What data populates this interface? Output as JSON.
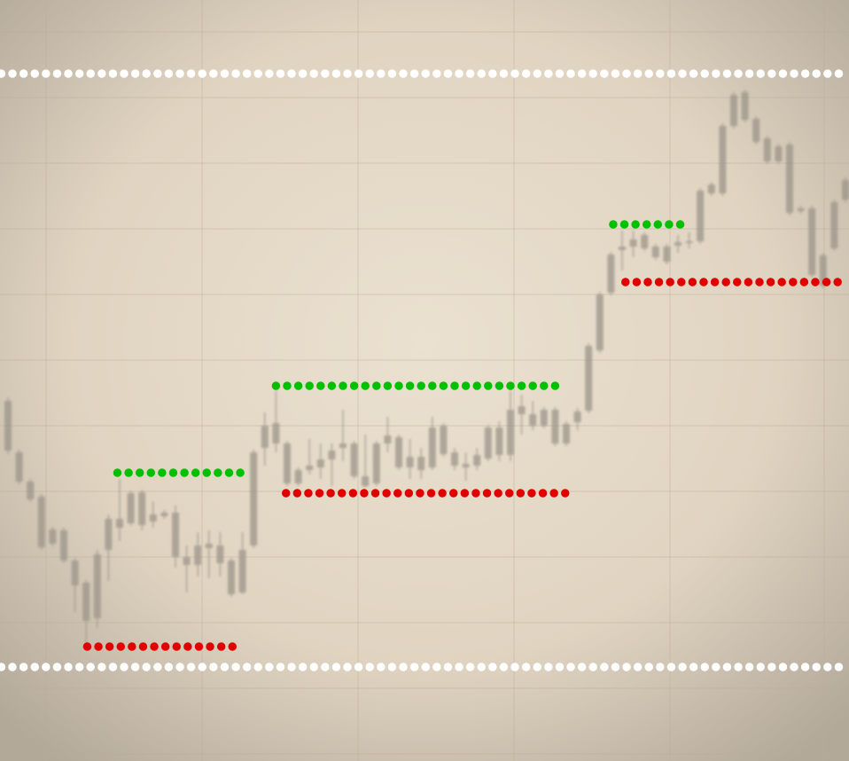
{
  "chart_data": {
    "type": "candlestick",
    "ylim": [
      0,
      858
    ],
    "open": [
      350,
      315,
      295,
      241,
      245,
      226,
      198,
      158,
      161,
      238,
      263,
      268,
      266,
      270,
      276,
      230,
      221,
      221,
      240,
      223,
      188,
      190,
      243,
      353,
      358,
      313,
      313,
      328,
      331,
      340,
      353,
      321,
      310,
      313,
      358,
      331,
      331,
      328,
      331,
      346,
      333,
      331,
      333,
      341,
      345,
      345,
      391,
      378,
      378,
      358,
      358,
      382,
      395,
      463,
      528,
      576,
      580,
      578,
      568,
      563,
      581,
      584,
      586,
      640,
      640,
      716,
      723,
      698,
      676,
      676,
      618,
      620,
      548,
      536,
      578,
      633
    ],
    "close": [
      406,
      348,
      315,
      298,
      261,
      260,
      226,
      201,
      233,
      273,
      273,
      302,
      303,
      278,
      280,
      280,
      230,
      243,
      245,
      243,
      226,
      238,
      348,
      378,
      381,
      358,
      328,
      333,
      340,
      350,
      358,
      358,
      321,
      358,
      367,
      365,
      343,
      343,
      376,
      378,
      348,
      335,
      345,
      376,
      376,
      396,
      400,
      391,
      396,
      396,
      380,
      394,
      468,
      526,
      571,
      580,
      588,
      593,
      580,
      580,
      585,
      586,
      643,
      650,
      716,
      751,
      754,
      724,
      702,
      693,
      695,
      623,
      623,
      570,
      630,
      655
    ],
    "high": [
      410,
      351,
      318,
      301,
      264,
      263,
      229,
      204,
      238,
      278,
      318,
      305,
      306,
      293,
      283,
      288,
      243,
      258,
      260,
      258,
      229,
      258,
      351,
      393,
      418,
      361,
      331,
      363,
      358,
      358,
      396,
      361,
      368,
      361,
      388,
      368,
      363,
      353,
      388,
      381,
      353,
      348,
      353,
      379,
      383,
      418,
      413,
      406,
      399,
      399,
      383,
      398,
      471,
      529,
      574,
      598,
      598,
      596,
      583,
      583,
      593,
      596,
      646,
      653,
      719,
      754,
      757,
      727,
      705,
      696,
      698,
      626,
      626,
      573,
      633,
      658
    ],
    "low": [
      346,
      312,
      292,
      238,
      242,
      223,
      168,
      128,
      150,
      203,
      248,
      265,
      260,
      263,
      273,
      218,
      190,
      208,
      206,
      208,
      185,
      188,
      240,
      333,
      348,
      310,
      310,
      323,
      318,
      310,
      338,
      318,
      308,
      310,
      348,
      328,
      318,
      318,
      328,
      343,
      328,
      316,
      328,
      338,
      338,
      338,
      368,
      373,
      375,
      355,
      355,
      373,
      392,
      460,
      525,
      553,
      568,
      575,
      565,
      560,
      573,
      578,
      583,
      637,
      637,
      713,
      720,
      695,
      673,
      673,
      615,
      617,
      545,
      533,
      575,
      630
    ],
    "color": "#9c948a",
    "levels": [
      {
        "value": 775,
        "color": "#ffffff",
        "from": -0.6,
        "to": 75.3
      },
      {
        "value": 106,
        "color": "#ffffff",
        "from": -0.6,
        "to": 75.3
      },
      {
        "value": 325,
        "color": "#00c000",
        "from": 9.8,
        "to": 20.9
      },
      {
        "value": 423,
        "color": "#00c000",
        "from": 24,
        "to": 49.5
      },
      {
        "value": 605,
        "color": "#00c000",
        "from": 54.2,
        "to": 61.2
      },
      {
        "value": 129,
        "color": "#e00000",
        "from": 7.1,
        "to": 21
      },
      {
        "value": 302,
        "color": "#e00000",
        "from": 24.9,
        "to": 50.6
      },
      {
        "value": 540,
        "color": "#e00000",
        "from": 55.3,
        "to": 74.8
      }
    ]
  }
}
